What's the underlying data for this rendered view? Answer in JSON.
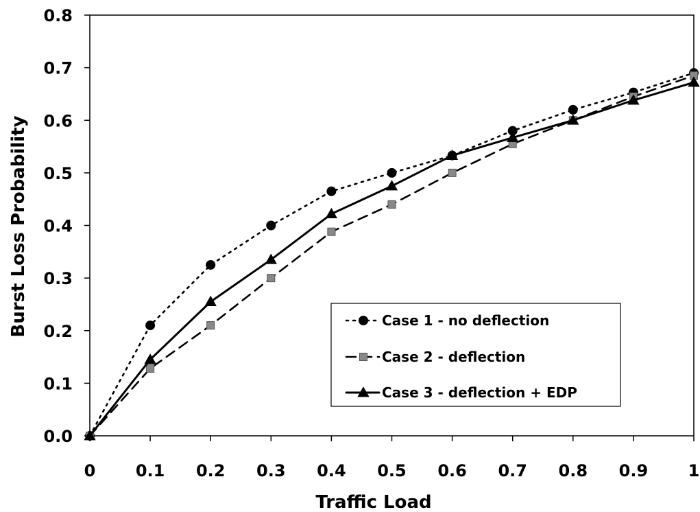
{
  "chart_data": {
    "type": "line",
    "xlabel": "Traffic Load",
    "ylabel": "Burst Loss Probability",
    "xlim": [
      0,
      1
    ],
    "ylim": [
      0,
      0.8
    ],
    "x_ticks": [
      "0",
      "0.1",
      "0.2",
      "0.3",
      "0.4",
      "0.5",
      "0.6",
      "0.7",
      "0.8",
      "0.9",
      "1"
    ],
    "y_ticks": [
      "0.0",
      "0.1",
      "0.2",
      "0.3",
      "0.4",
      "0.5",
      "0.6",
      "0.7",
      "0.8"
    ],
    "grid": false,
    "legend_position": "bottom-right",
    "x": [
      0,
      0.1,
      0.2,
      0.3,
      0.4,
      0.5,
      0.6,
      0.7,
      0.8,
      0.9,
      1.0
    ],
    "series": [
      {
        "name": "Case 1 - no deflection",
        "values": [
          0.0,
          0.21,
          0.325,
          0.4,
          0.465,
          0.5,
          0.533,
          0.58,
          0.62,
          0.653,
          0.69
        ],
        "line_style": "dotted",
        "marker": "circle",
        "color": "#000000"
      },
      {
        "name": "Case 2 - deflection",
        "values": [
          0.0,
          0.128,
          0.21,
          0.3,
          0.388,
          0.44,
          0.5,
          0.555,
          0.6,
          0.645,
          0.685
        ],
        "line_style": "dashed",
        "marker": "square",
        "color": "#000000",
        "marker_color": "#888888"
      },
      {
        "name": "Case 3 - deflection + EDP",
        "values": [
          0.0,
          0.145,
          0.255,
          0.335,
          0.422,
          0.475,
          0.533,
          0.567,
          0.6,
          0.638,
          0.672
        ],
        "line_style": "solid",
        "marker": "triangle",
        "color": "#000000"
      }
    ]
  }
}
